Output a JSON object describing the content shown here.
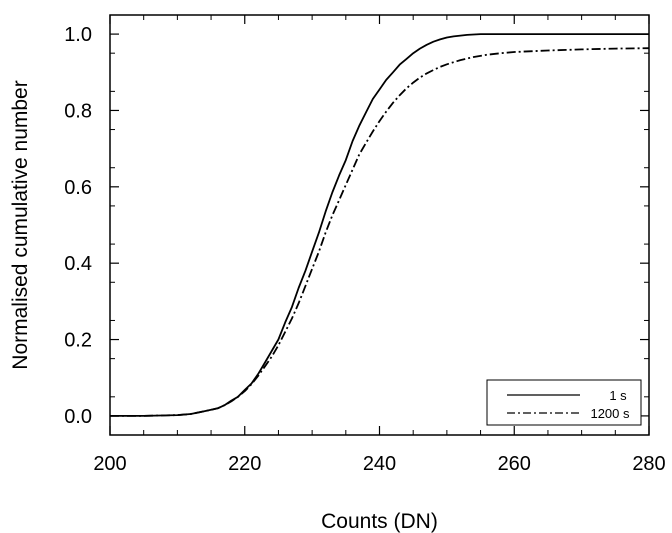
{
  "chart_data": {
    "type": "line",
    "xlabel": "Counts (DN)",
    "ylabel": "Normalised cumulative number",
    "xlim": [
      200,
      280
    ],
    "ylim": [
      -0.05,
      1.05
    ],
    "x_ticks": [
      200,
      220,
      240,
      260,
      280
    ],
    "x_tick_labels": [
      "200",
      "220",
      "240",
      "260",
      "280"
    ],
    "y_ticks": [
      0.0,
      0.2,
      0.4,
      0.6,
      0.8,
      1.0
    ],
    "y_tick_labels": [
      "0.0",
      "0.2",
      "0.4",
      "0.6",
      "0.8",
      "1.0"
    ],
    "grid": false,
    "legend_position": "bottom-right",
    "series": [
      {
        "name": "1 s",
        "line_style": "solid",
        "color": "#000000",
        "x": [
          200,
          205,
          210,
          212,
          214,
          216,
          217,
          218,
          219,
          220,
          221,
          222,
          223,
          224,
          225,
          226,
          227,
          228,
          229,
          230,
          231,
          232,
          233,
          234,
          235,
          236,
          237,
          238,
          239,
          240,
          241,
          242,
          243,
          244,
          245,
          246,
          247,
          248,
          249,
          250,
          251,
          252,
          253,
          254,
          255,
          256,
          258,
          260,
          265,
          270,
          280
        ],
        "y": [
          0.0,
          0.0,
          0.002,
          0.005,
          0.012,
          0.02,
          0.028,
          0.04,
          0.05,
          0.068,
          0.085,
          0.11,
          0.14,
          0.17,
          0.2,
          0.245,
          0.285,
          0.335,
          0.38,
          0.43,
          0.48,
          0.535,
          0.585,
          0.63,
          0.67,
          0.72,
          0.76,
          0.795,
          0.83,
          0.855,
          0.88,
          0.9,
          0.92,
          0.935,
          0.95,
          0.962,
          0.972,
          0.98,
          0.986,
          0.991,
          0.994,
          0.996,
          0.998,
          0.999,
          1.0,
          1.0,
          1.0,
          1.0,
          1.0,
          1.0,
          1.0
        ]
      },
      {
        "name": "1200 s",
        "line_style": "dash-dot",
        "color": "#000000",
        "x": [
          200,
          205,
          210,
          212,
          214,
          216,
          217,
          218,
          219,
          220,
          221,
          222,
          223,
          224,
          225,
          226,
          227,
          228,
          229,
          230,
          231,
          232,
          233,
          234,
          235,
          236,
          237,
          238,
          239,
          240,
          241,
          242,
          243,
          244,
          245,
          246,
          247,
          248,
          249,
          250,
          252,
          254,
          256,
          258,
          260,
          265,
          270,
          275,
          280
        ],
        "y": [
          0.0,
          0.0,
          0.002,
          0.005,
          0.012,
          0.02,
          0.028,
          0.038,
          0.05,
          0.065,
          0.083,
          0.105,
          0.13,
          0.155,
          0.185,
          0.22,
          0.255,
          0.295,
          0.34,
          0.385,
          0.43,
          0.48,
          0.525,
          0.565,
          0.605,
          0.645,
          0.685,
          0.715,
          0.745,
          0.772,
          0.797,
          0.82,
          0.84,
          0.858,
          0.873,
          0.886,
          0.897,
          0.906,
          0.914,
          0.921,
          0.932,
          0.94,
          0.946,
          0.95,
          0.953,
          0.957,
          0.96,
          0.962,
          0.963
        ]
      }
    ]
  }
}
